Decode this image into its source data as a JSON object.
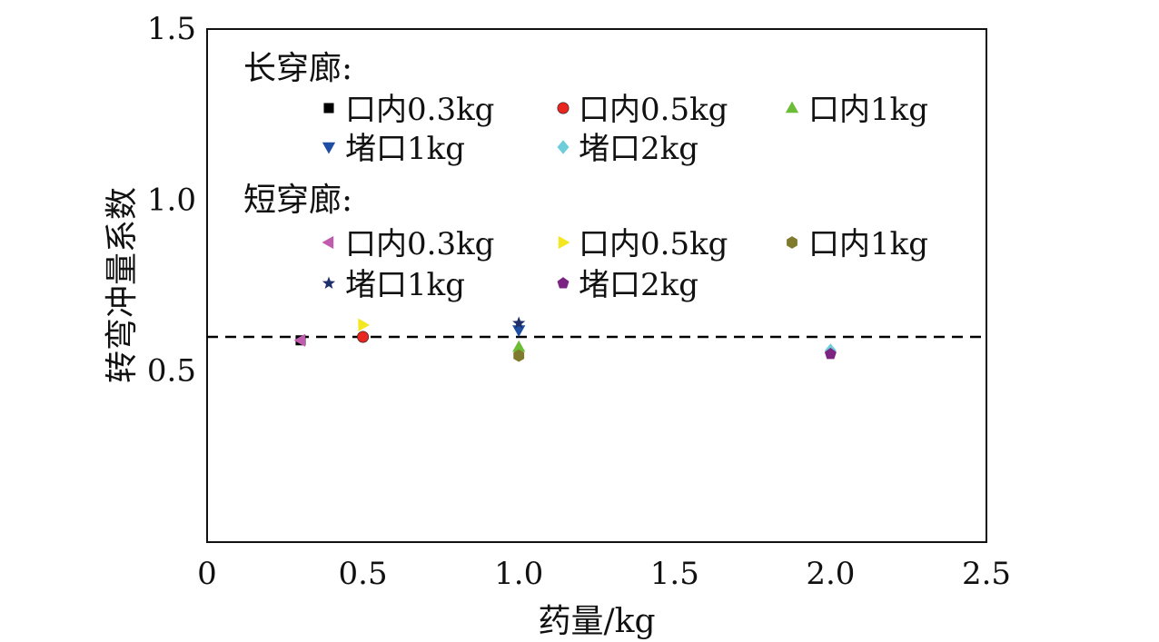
{
  "chart_data": {
    "type": "scatter",
    "xlabel": "药量/kg",
    "ylabel": "转弯冲量系数",
    "xlim": [
      0,
      2.5
    ],
    "ylim": [
      0,
      1.5
    ],
    "xticks": [
      0,
      0.5,
      1.0,
      1.5,
      2.0,
      2.5
    ],
    "xtick_labels": [
      "0",
      "0.5",
      "1.0",
      "1.5",
      "2.0",
      "2.5"
    ],
    "yticks": [
      0.5,
      1.0,
      1.5
    ],
    "ytick_labels": [
      "0.5",
      "1.0",
      "1.5"
    ],
    "grid": false,
    "legend_position": "top",
    "reference_line": {
      "y": 0.6,
      "style": "dashed",
      "color": "#000000"
    },
    "groups": [
      {
        "name": "长穿廊:",
        "series": [
          {
            "name": "口内0.3kg",
            "marker": "square",
            "color": "#000000",
            "points": [
              {
                "x": 0.3,
                "y": 0.59
              }
            ]
          },
          {
            "name": "口内0.5kg",
            "marker": "circle",
            "color": "#e8251f",
            "points": [
              {
                "x": 0.5,
                "y": 0.6
              }
            ]
          },
          {
            "name": "口内1kg",
            "marker": "triangle-up",
            "color": "#6cbd36",
            "points": [
              {
                "x": 1.0,
                "y": 0.57
              }
            ]
          },
          {
            "name": "堵口1kg",
            "marker": "triangle-down",
            "color": "#1d4ea4",
            "points": [
              {
                "x": 1.0,
                "y": 0.62
              }
            ]
          },
          {
            "name": "堵口2kg",
            "marker": "diamond",
            "color": "#6dcdd9",
            "points": [
              {
                "x": 2.0,
                "y": 0.56
              }
            ]
          }
        ]
      },
      {
        "name": "短穿廊:",
        "series": [
          {
            "name": "口内0.3kg",
            "marker": "triangle-left",
            "color": "#c05cad",
            "points": [
              {
                "x": 0.3,
                "y": 0.59
              }
            ]
          },
          {
            "name": "口内0.5kg",
            "marker": "triangle-right",
            "color": "#f3e820",
            "points": [
              {
                "x": 0.5,
                "y": 0.635
              }
            ]
          },
          {
            "name": "口内1kg",
            "marker": "hexagon",
            "color": "#7f7a2e",
            "points": [
              {
                "x": 1.0,
                "y": 0.545
              }
            ]
          },
          {
            "name": "堵口1kg",
            "marker": "star",
            "color": "#1e2f6b",
            "points": [
              {
                "x": 1.0,
                "y": 0.64
              }
            ]
          },
          {
            "name": "堵口2kg",
            "marker": "pentagon",
            "color": "#7b2482",
            "points": [
              {
                "x": 2.0,
                "y": 0.55
              }
            ]
          }
        ]
      }
    ]
  }
}
